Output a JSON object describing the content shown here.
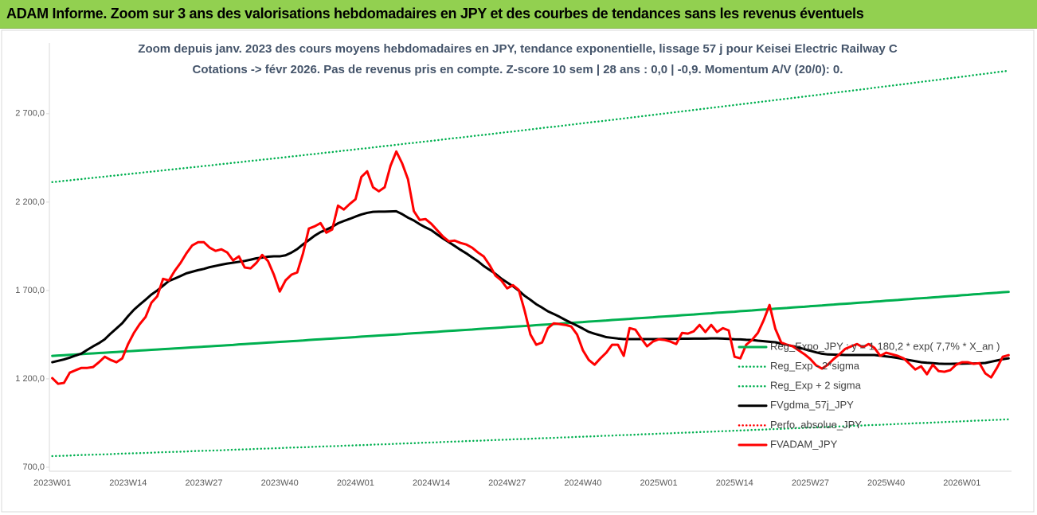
{
  "header": {
    "title": "ADAM Informe. Zoom sur 3 ans des valorisations hebdomadaires en JPY et des courbes de tendances sans les revenus éventuels"
  },
  "chart_data": {
    "type": "line",
    "title": "Zoom depuis janv. 2023 des cours moyens hebdomadaires en JPY, tendance exponentielle, lissage 57 j pour Keisei Electric Railway C",
    "subtitle": "Cotations -> févr 2026. Pas de revenus pris en compte. Z-score 10 sem | 28 ans : 0,0 | -0,9. Momentum A/V (20/0): 0.",
    "categories": [
      "2023W01",
      null,
      null,
      null,
      null,
      null,
      null,
      null,
      null,
      null,
      null,
      null,
      null,
      "2023W14",
      null,
      null,
      null,
      null,
      null,
      null,
      null,
      null,
      null,
      null,
      null,
      null,
      "2023W27",
      null,
      null,
      null,
      null,
      null,
      null,
      null,
      null,
      null,
      null,
      null,
      null,
      "2023W40",
      null,
      null,
      null,
      null,
      null,
      null,
      null,
      null,
      null,
      null,
      null,
      null,
      "2024W01",
      null,
      null,
      null,
      null,
      null,
      null,
      null,
      null,
      null,
      null,
      null,
      null,
      "2024W14",
      null,
      null,
      null,
      null,
      null,
      null,
      null,
      null,
      null,
      null,
      null,
      null,
      "2024W27",
      null,
      null,
      null,
      null,
      null,
      null,
      null,
      null,
      null,
      null,
      null,
      null,
      "2024W40",
      null,
      null,
      null,
      null,
      null,
      null,
      null,
      null,
      null,
      null,
      null,
      null,
      "2025W01",
      null,
      null,
      null,
      null,
      null,
      null,
      null,
      null,
      null,
      null,
      null,
      null,
      "2025W14",
      null,
      null,
      null,
      null,
      null,
      null,
      null,
      null,
      null,
      null,
      null,
      null,
      "2025W27",
      null,
      null,
      null,
      null,
      null,
      null,
      null,
      null,
      null,
      null,
      null,
      null,
      "2025W40",
      null,
      null,
      null,
      null,
      null,
      null,
      null,
      null,
      null,
      null,
      null,
      null,
      "2026W01",
      null,
      null,
      null,
      null,
      null,
      null,
      null,
      null
    ],
    "ylim": [
      700,
      3100
    ],
    "yticks": [
      {
        "value": 700,
        "label": "700,0"
      },
      {
        "value": 1200,
        "label": "1 200,0"
      },
      {
        "value": 1700,
        "label": "1 700,0"
      },
      {
        "value": 2200,
        "label": "2 200,0"
      },
      {
        "value": 2700,
        "label": "2 700,0"
      }
    ],
    "grid": false,
    "legend_position": "right",
    "series": [
      {
        "name": "Reg_Expo_JPY : y = 1 180,2 * exp( 7,7% *  X_an )",
        "color": "#00b050",
        "line_style": "solid",
        "values": [
          1330,
          1332,
          1334,
          1336,
          1338,
          1340,
          1342,
          1344,
          1346,
          1348,
          1350,
          1352,
          1354,
          1356,
          1358,
          1360,
          1362,
          1364,
          1366,
          1368,
          1370,
          1372,
          1374,
          1376,
          1378,
          1380,
          1382,
          1384,
          1386,
          1388,
          1390,
          1392,
          1395,
          1397,
          1399,
          1401,
          1403,
          1405,
          1407,
          1409,
          1411,
          1413,
          1415,
          1417,
          1420,
          1422,
          1424,
          1426,
          1428,
          1430,
          1432,
          1434,
          1436,
          1439,
          1441,
          1443,
          1445,
          1447,
          1449,
          1451,
          1453,
          1456,
          1458,
          1460,
          1462,
          1464,
          1466,
          1469,
          1471,
          1473,
          1475,
          1477,
          1479,
          1482,
          1484,
          1486,
          1488,
          1490,
          1493,
          1495,
          1497,
          1499,
          1501,
          1504,
          1506,
          1508,
          1510,
          1512,
          1515,
          1517,
          1519,
          1521,
          1524,
          1526,
          1528,
          1530,
          1533,
          1535,
          1537,
          1539,
          1542,
          1544,
          1546,
          1548,
          1551,
          1553,
          1555,
          1557,
          1560,
          1562,
          1564,
          1567,
          1569,
          1571,
          1574,
          1576,
          1578,
          1580,
          1583,
          1585,
          1587,
          1590,
          1592,
          1594,
          1597,
          1599,
          1601,
          1604,
          1606,
          1608,
          1611,
          1613,
          1615,
          1618,
          1620,
          1623,
          1625,
          1627,
          1630,
          1632,
          1634,
          1637,
          1639,
          1642,
          1644,
          1646,
          1649,
          1651,
          1654,
          1656,
          1658,
          1661,
          1663,
          1666,
          1668,
          1670,
          1673,
          1675,
          1678,
          1680,
          1683,
          1685,
          1687,
          1690,
          1692
        ]
      },
      {
        "name": "Reg_Exp - 2*sigma",
        "color": "#00b050",
        "line_style": "dotted",
        "values": [
          763,
          764,
          765,
          766,
          768,
          769,
          770,
          771,
          772,
          773,
          774,
          776,
          777,
          778,
          779,
          780,
          781,
          782,
          784,
          785,
          786,
          787,
          788,
          789,
          791,
          792,
          793,
          794,
          795,
          796,
          798,
          799,
          800,
          801,
          802,
          804,
          805,
          806,
          807,
          808,
          810,
          811,
          812,
          813,
          814,
          816,
          817,
          818,
          819,
          820,
          822,
          823,
          824,
          825,
          826,
          828,
          829,
          830,
          831,
          833,
          834,
          835,
          836,
          838,
          839,
          840,
          841,
          843,
          844,
          845,
          846,
          848,
          849,
          850,
          851,
          853,
          854,
          855,
          856,
          858,
          859,
          860,
          861,
          863,
          864,
          865,
          866,
          868,
          869,
          870,
          872,
          873,
          874,
          875,
          877,
          878,
          879,
          881,
          882,
          883,
          884,
          886,
          887,
          888,
          890,
          891,
          892,
          894,
          895,
          896,
          897,
          899,
          900,
          901,
          903,
          904,
          905,
          907,
          908,
          909,
          911,
          912,
          913,
          915,
          916,
          917,
          919,
          920,
          921,
          923,
          924,
          925,
          927,
          928,
          930,
          931,
          932,
          934,
          935,
          936,
          938,
          939,
          940,
          942,
          943,
          945,
          946,
          947,
          949,
          950,
          951,
          953,
          954,
          956,
          957,
          958,
          960,
          961,
          963,
          964,
          965,
          967,
          968,
          970,
          971
        ]
      },
      {
        "name": "Reg_Exp + 2 sigma",
        "color": "#00b050",
        "line_style": "dotted",
        "values": [
          2313,
          2316,
          2320,
          2323,
          2327,
          2330,
          2334,
          2337,
          2341,
          2344,
          2348,
          2351,
          2355,
          2358,
          2362,
          2365,
          2369,
          2372,
          2376,
          2379,
          2383,
          2386,
          2390,
          2393,
          2397,
          2400,
          2404,
          2407,
          2411,
          2415,
          2418,
          2422,
          2425,
          2429,
          2433,
          2436,
          2440,
          2443,
          2447,
          2450,
          2454,
          2458,
          2461,
          2465,
          2469,
          2472,
          2476,
          2480,
          2483,
          2487,
          2491,
          2494,
          2498,
          2502,
          2505,
          2509,
          2513,
          2517,
          2520,
          2524,
          2528,
          2532,
          2535,
          2539,
          2543,
          2546,
          2550,
          2554,
          2558,
          2562,
          2565,
          2569,
          2573,
          2577,
          2580,
          2584,
          2588,
          2592,
          2596,
          2599,
          2603,
          2607,
          2611,
          2615,
          2619,
          2623,
          2626,
          2630,
          2634,
          2638,
          2642,
          2646,
          2650,
          2654,
          2657,
          2661,
          2665,
          2669,
          2673,
          2677,
          2681,
          2685,
          2689,
          2693,
          2697,
          2701,
          2705,
          2709,
          2713,
          2717,
          2721,
          2725,
          2729,
          2733,
          2737,
          2741,
          2745,
          2749,
          2753,
          2757,
          2761,
          2765,
          2769,
          2773,
          2777,
          2781,
          2785,
          2789,
          2793,
          2797,
          2801,
          2805,
          2809,
          2814,
          2818,
          2822,
          2826,
          2830,
          2834,
          2838,
          2842,
          2847,
          2851,
          2855,
          2859,
          2863,
          2867,
          2871,
          2876,
          2880,
          2884,
          2888,
          2892,
          2897,
          2901,
          2905,
          2909,
          2913,
          2918,
          2922,
          2926,
          2930,
          2935,
          2939,
          2943
        ]
      },
      {
        "name": "FVgdma_57j_JPY",
        "color": "#000000",
        "line_style": "solid",
        "values": [
          1294,
          1302,
          1310,
          1320,
          1332,
          1343,
          1364,
          1384,
          1402,
          1424,
          1456,
          1485,
          1515,
          1555,
          1591,
          1620,
          1648,
          1677,
          1700,
          1727,
          1754,
          1767,
          1782,
          1797,
          1806,
          1815,
          1822,
          1832,
          1839,
          1846,
          1852,
          1857,
          1862,
          1867,
          1874,
          1882,
          1886,
          1891,
          1893,
          1893,
          1899,
          1914,
          1934,
          1961,
          1985,
          2010,
          2030,
          2044,
          2060,
          2080,
          2093,
          2105,
          2118,
          2130,
          2139,
          2145,
          2146,
          2146,
          2147,
          2148,
          2132,
          2112,
          2096,
          2075,
          2057,
          2041,
          2017,
          1994,
          1973,
          1952,
          1930,
          1910,
          1887,
          1865,
          1838,
          1816,
          1794,
          1767,
          1745,
          1724,
          1699,
          1670,
          1647,
          1622,
          1603,
          1582,
          1567,
          1551,
          1533,
          1517,
          1501,
          1484,
          1466,
          1455,
          1446,
          1436,
          1432,
          1428,
          1425,
          1425,
          1425,
          1425,
          1425,
          1425,
          1425,
          1426,
          1426,
          1426,
          1427,
          1427,
          1428,
          1428,
          1428,
          1429,
          1429,
          1428,
          1426,
          1424,
          1423,
          1421,
          1420,
          1416,
          1413,
          1410,
          1407,
          1399,
          1392,
          1385,
          1377,
          1368,
          1359,
          1350,
          1342,
          1338,
          1337,
          1336,
          1335,
          1335,
          1335,
          1335,
          1335,
          1335,
          1331,
          1327,
          1323,
          1318,
          1312,
          1306,
          1300,
          1294,
          1291,
          1289,
          1286,
          1285,
          1285,
          1286,
          1286,
          1287,
          1287,
          1288,
          1290,
          1297,
          1304,
          1311,
          1316
        ]
      },
      {
        "name": "Perfo. absolue_JPY",
        "color": "#ff0000",
        "line_style": "dotted",
        "values": [
          1204,
          1172,
          1177,
          1235,
          1249,
          1262,
          1262,
          1267,
          1294,
          1325,
          1307,
          1294,
          1316,
          1397,
          1460,
          1510,
          1550,
          1631,
          1667,
          1766,
          1757,
          1811,
          1856,
          1910,
          1955,
          1973,
          1973,
          1942,
          1924,
          1933,
          1915,
          1870,
          1893,
          1830,
          1825,
          1856,
          1901,
          1866,
          1789,
          1694,
          1757,
          1789,
          1802,
          1910,
          2050,
          2063,
          2081,
          2027,
          2045,
          2180,
          2158,
          2189,
          2216,
          2342,
          2374,
          2284,
          2261,
          2284,
          2405,
          2486,
          2419,
          2329,
          2149,
          2099,
          2104,
          2077,
          2041,
          2005,
          1978,
          1982,
          1969,
          1960,
          1942,
          1915,
          1892,
          1843,
          1784,
          1757,
          1712,
          1730,
          1703,
          1586,
          1451,
          1393,
          1406,
          1487,
          1514,
          1510,
          1505,
          1496,
          1451,
          1361,
          1307,
          1280,
          1316,
          1348,
          1393,
          1393,
          1330,
          1487,
          1478,
          1429,
          1384,
          1411,
          1424,
          1420,
          1411,
          1397,
          1460,
          1456,
          1469,
          1505,
          1465,
          1505,
          1465,
          1487,
          1474,
          1325,
          1316,
          1393,
          1420,
          1460,
          1532,
          1618,
          1483,
          1406,
          1393,
          1384,
          1361,
          1339,
          1312,
          1276,
          1258,
          1280,
          1312,
          1339,
          1370,
          1384,
          1397,
          1379,
          1397,
          1375,
          1330,
          1348,
          1339,
          1330,
          1316,
          1285,
          1253,
          1271,
          1226,
          1280,
          1244,
          1240,
          1249,
          1280,
          1294,
          1294,
          1285,
          1289,
          1231,
          1208,
          1262,
          1325,
          1334
        ]
      },
      {
        "name": "FVADAM_JPY",
        "color": "#ff0000",
        "line_style": "solid",
        "values": [
          1204,
          1172,
          1177,
          1235,
          1249,
          1262,
          1262,
          1267,
          1294,
          1325,
          1307,
          1294,
          1316,
          1397,
          1460,
          1510,
          1550,
          1631,
          1667,
          1766,
          1757,
          1811,
          1856,
          1910,
          1955,
          1973,
          1973,
          1942,
          1924,
          1933,
          1915,
          1870,
          1893,
          1830,
          1825,
          1856,
          1901,
          1866,
          1789,
          1694,
          1757,
          1789,
          1802,
          1910,
          2050,
          2063,
          2081,
          2027,
          2045,
          2180,
          2158,
          2189,
          2216,
          2342,
          2374,
          2284,
          2261,
          2284,
          2405,
          2486,
          2419,
          2329,
          2149,
          2099,
          2104,
          2077,
          2041,
          2005,
          1978,
          1982,
          1969,
          1960,
          1942,
          1915,
          1892,
          1843,
          1784,
          1757,
          1712,
          1730,
          1703,
          1586,
          1451,
          1393,
          1406,
          1487,
          1514,
          1510,
          1505,
          1496,
          1451,
          1361,
          1307,
          1280,
          1316,
          1348,
          1393,
          1393,
          1330,
          1487,
          1478,
          1429,
          1384,
          1411,
          1424,
          1420,
          1411,
          1397,
          1460,
          1456,
          1469,
          1505,
          1465,
          1505,
          1465,
          1487,
          1474,
          1325,
          1316,
          1393,
          1420,
          1460,
          1532,
          1618,
          1483,
          1406,
          1393,
          1384,
          1361,
          1339,
          1312,
          1276,
          1258,
          1280,
          1312,
          1339,
          1370,
          1384,
          1397,
          1379,
          1397,
          1375,
          1330,
          1348,
          1339,
          1330,
          1316,
          1285,
          1253,
          1271,
          1226,
          1280,
          1244,
          1240,
          1249,
          1280,
          1294,
          1294,
          1285,
          1289,
          1231,
          1208,
          1262,
          1325,
          1334
        ]
      }
    ]
  }
}
